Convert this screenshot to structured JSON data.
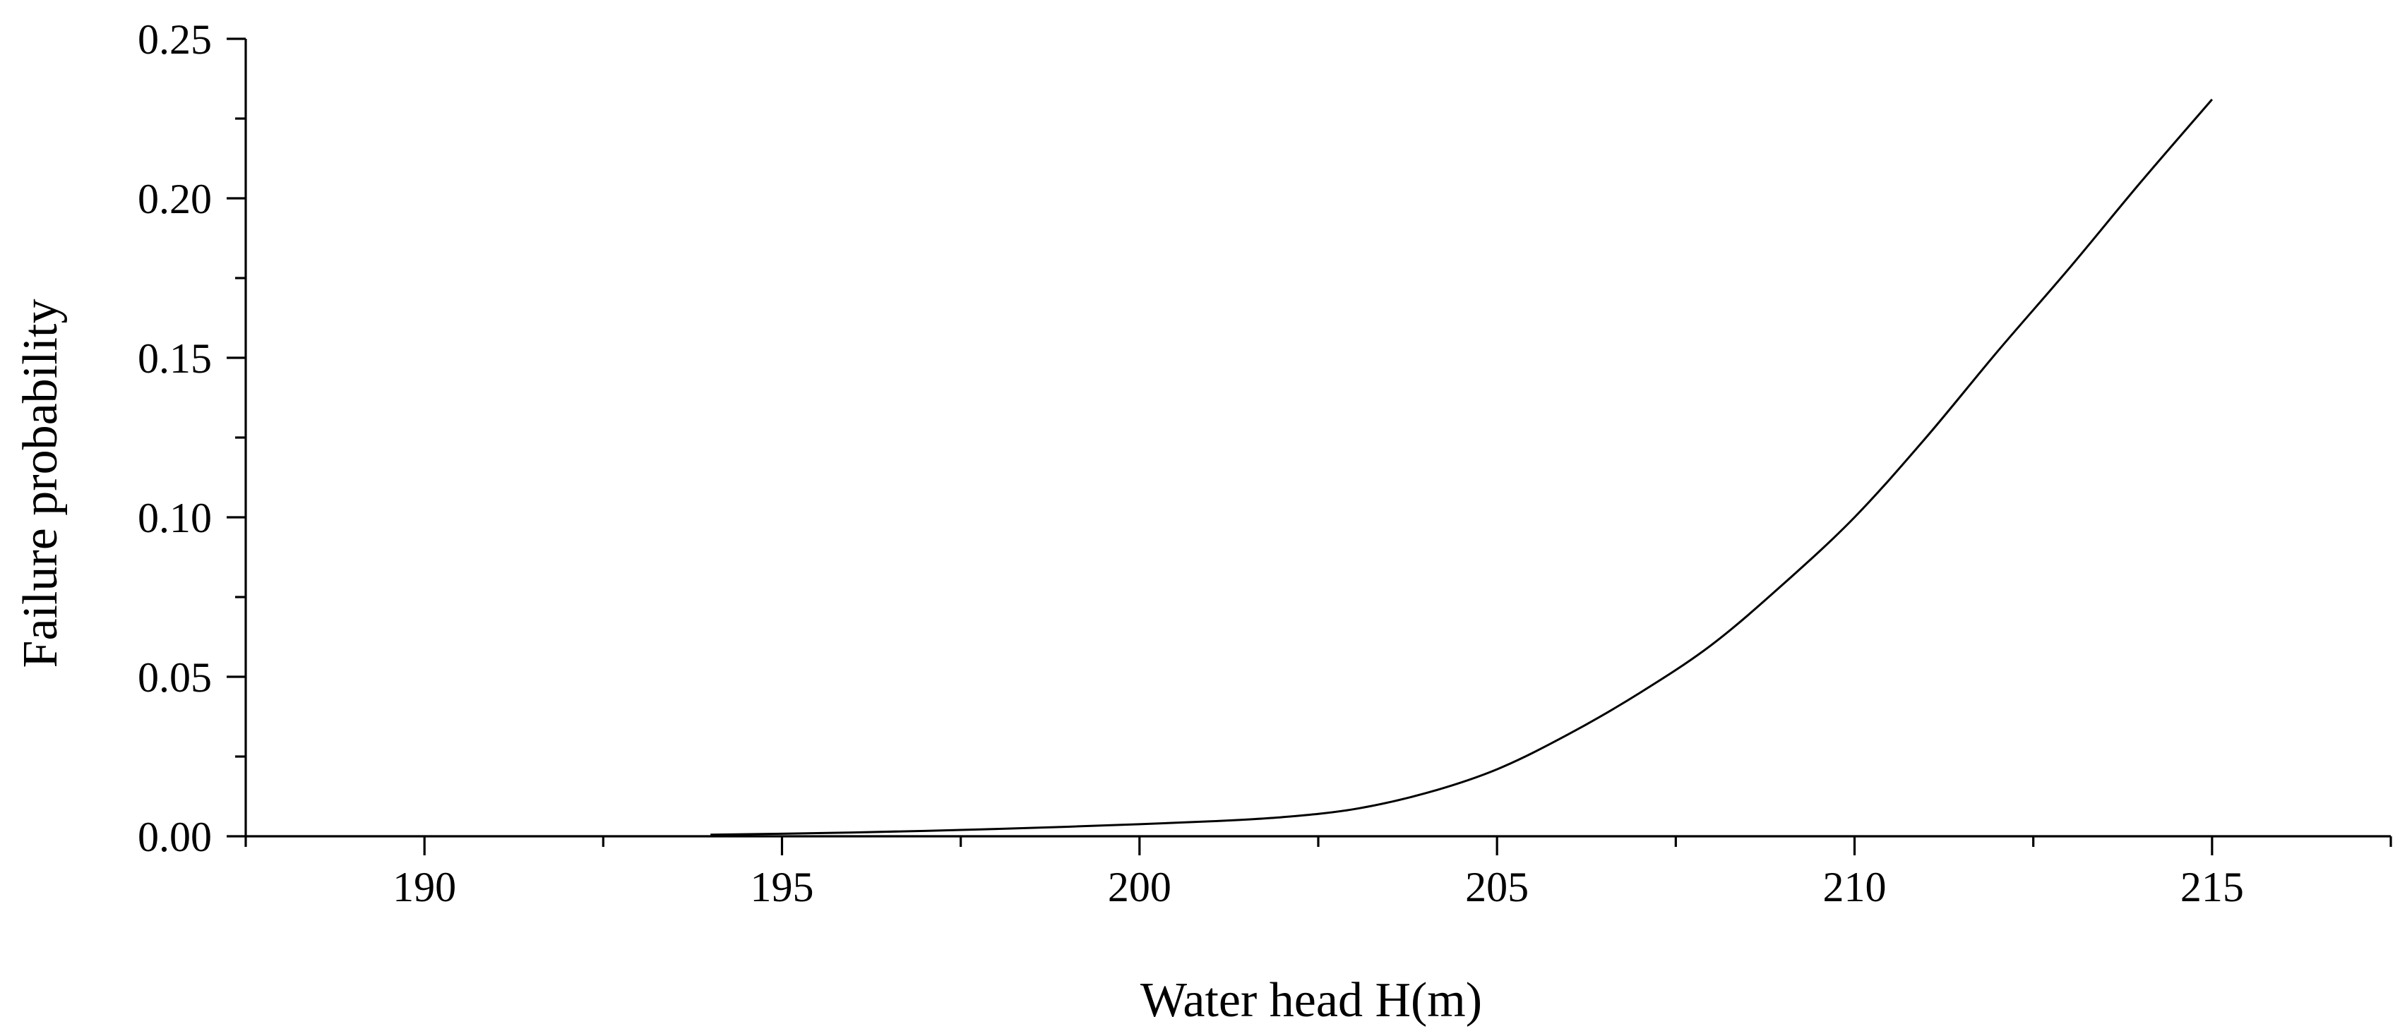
{
  "chart_data": {
    "type": "line",
    "title": "",
    "xlabel": "Water head H(m)",
    "ylabel": "Failure probability",
    "xlim": [
      187.5,
      217.5
    ],
    "ylim": [
      0,
      0.25
    ],
    "x_ticks": [
      190,
      195,
      200,
      205,
      210,
      215
    ],
    "x_tick_labels": [
      "190",
      "195",
      "200",
      "205",
      "210",
      "215"
    ],
    "y_ticks": [
      0,
      0.05,
      0.1,
      0.15,
      0.2,
      0.25
    ],
    "y_tick_labels": [
      "0.00",
      "0.05",
      "0.10",
      "0.15",
      "0.20",
      "0.25"
    ],
    "grid": false,
    "legend": "none",
    "line_color": "#000000",
    "series": [
      {
        "x": [
          194,
          195,
          196,
          197,
          198,
          199,
          200,
          201,
          202,
          203,
          204,
          205,
          206,
          207,
          208,
          209,
          210,
          211,
          212,
          213,
          214,
          215
        ],
        "y": [
          0.0005,
          0.0008,
          0.0012,
          0.0017,
          0.0023,
          0.003,
          0.0038,
          0.0047,
          0.006,
          0.0085,
          0.0135,
          0.021,
          0.032,
          0.045,
          0.06,
          0.079,
          0.1,
          0.125,
          0.152,
          0.178,
          0.205,
          0.231
        ]
      }
    ]
  }
}
